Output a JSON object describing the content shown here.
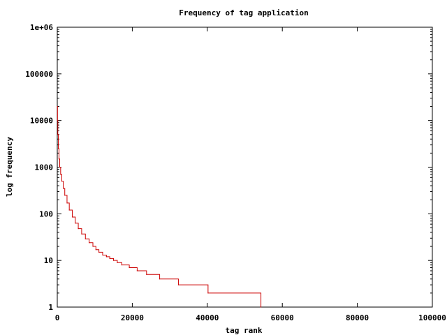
{
  "chart_data": {
    "type": "line",
    "title": "Frequency of tag application",
    "xlabel": "tag rank",
    "ylabel": "log frequency",
    "x_scale": "linear",
    "y_scale": "log",
    "xlim": [
      0,
      100000
    ],
    "ylim": [
      1,
      1000000
    ],
    "x_ticks": [
      0,
      20000,
      40000,
      60000,
      80000,
      100000
    ],
    "x_tick_labels": [
      "0",
      "20000",
      "40000",
      "60000",
      "80000",
      "100000"
    ],
    "y_ticks": [
      1,
      10,
      100,
      1000,
      10000,
      100000,
      1000000
    ],
    "y_tick_labels": [
      "1",
      "10",
      "100",
      "1000",
      "10000",
      "100000",
      "1e+06"
    ],
    "grid": false,
    "legend": "none",
    "series": [
      {
        "color": "#cc0000",
        "step": true,
        "points": [
          [
            0,
            20000
          ],
          [
            60,
            10000
          ],
          [
            150,
            5000
          ],
          [
            280,
            2500
          ],
          [
            450,
            1500
          ],
          [
            650,
            1000
          ],
          [
            900,
            700
          ],
          [
            1200,
            500
          ],
          [
            1600,
            350
          ],
          [
            2000,
            250
          ],
          [
            2600,
            170
          ],
          [
            3200,
            120
          ],
          [
            4000,
            85
          ],
          [
            4800,
            63
          ],
          [
            5600,
            48
          ],
          [
            6500,
            37
          ],
          [
            7500,
            29
          ],
          [
            8500,
            24
          ],
          [
            9500,
            20
          ],
          [
            10300,
            17
          ],
          [
            11100,
            15
          ],
          [
            12100,
            13
          ],
          [
            13100,
            12
          ],
          [
            14000,
            11
          ],
          [
            15000,
            10
          ],
          [
            16000,
            9
          ],
          [
            17200,
            8
          ],
          [
            19200,
            7
          ],
          [
            21300,
            6
          ],
          [
            23800,
            5
          ],
          [
            27300,
            4
          ],
          [
            32300,
            3
          ],
          [
            40200,
            2
          ],
          [
            54300,
            1
          ]
        ]
      }
    ]
  }
}
